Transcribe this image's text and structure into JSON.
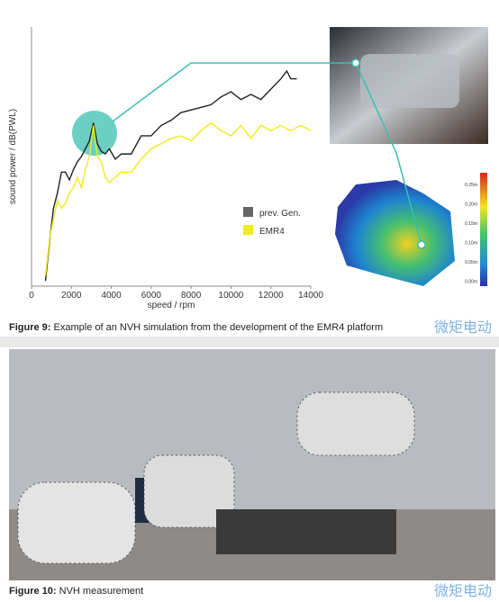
{
  "chart_data": {
    "type": "line",
    "xlabel": "speed / rpm",
    "ylabel": "sound power / dB(PWL)",
    "xlim": [
      0,
      14000
    ],
    "xticks": [
      0,
      2000,
      4000,
      6000,
      8000,
      10000,
      12000,
      14000
    ],
    "ylim": [
      0,
      100
    ],
    "legend": "center-right",
    "series": [
      {
        "name": "prev. Gen.",
        "color": "#222222",
        "x": [
          700,
          900,
          1100,
          1300,
          1500,
          1700,
          1900,
          2100,
          2300,
          2500,
          2700,
          2900,
          3100,
          3300,
          3500,
          3700,
          3900,
          4200,
          4500,
          5000,
          5500,
          6000,
          6500,
          7000,
          7500,
          8000,
          8500,
          9000,
          9500,
          10000,
          10500,
          11000,
          11500,
          12000,
          12500,
          12800,
          13000,
          13300
        ],
        "values": [
          2,
          17,
          30,
          36,
          44,
          44,
          41,
          45,
          48,
          50,
          53,
          56,
          63,
          55,
          52,
          51,
          53,
          49,
          51,
          51,
          58,
          58,
          62,
          64,
          67,
          68,
          69,
          70,
          73,
          75,
          72,
          74,
          72,
          76,
          80,
          83,
          80,
          80
        ]
      },
      {
        "name": "EMR4",
        "color": "#f0eb1e",
        "x": [
          700,
          900,
          1100,
          1300,
          1500,
          1700,
          1900,
          2100,
          2300,
          2500,
          2700,
          2900,
          3100,
          3300,
          3500,
          3700,
          3900,
          4200,
          4500,
          5000,
          5500,
          6000,
          6500,
          7000,
          7500,
          8000,
          8500,
          9000,
          9500,
          10000,
          10500,
          11000,
          11500,
          12000,
          12500,
          13000,
          13500,
          14000
        ],
        "values": [
          4,
          18,
          26,
          33,
          30,
          32,
          36,
          38,
          42,
          38,
          45,
          50,
          62,
          50,
          48,
          42,
          40,
          42,
          44,
          44,
          49,
          53,
          55,
          57,
          58,
          56,
          60,
          63,
          60,
          58,
          62,
          57,
          62,
          60,
          62,
          60,
          62,
          60
        ]
      }
    ]
  },
  "colorbar_labels": [
    "0.25m",
    "0.20m",
    "0.15m",
    "0.10m",
    "0.05m",
    "0.00m"
  ],
  "figure9_caption": {
    "label": "Figure 9:",
    "text": "Example of an NVH simulation from the development of the EMR4 platform"
  },
  "figure10_caption": {
    "label": "Figure 10:",
    "text": "NVH measurement"
  },
  "watermark_top": "微矩电动",
  "watermark_bottom": "微矩电动"
}
